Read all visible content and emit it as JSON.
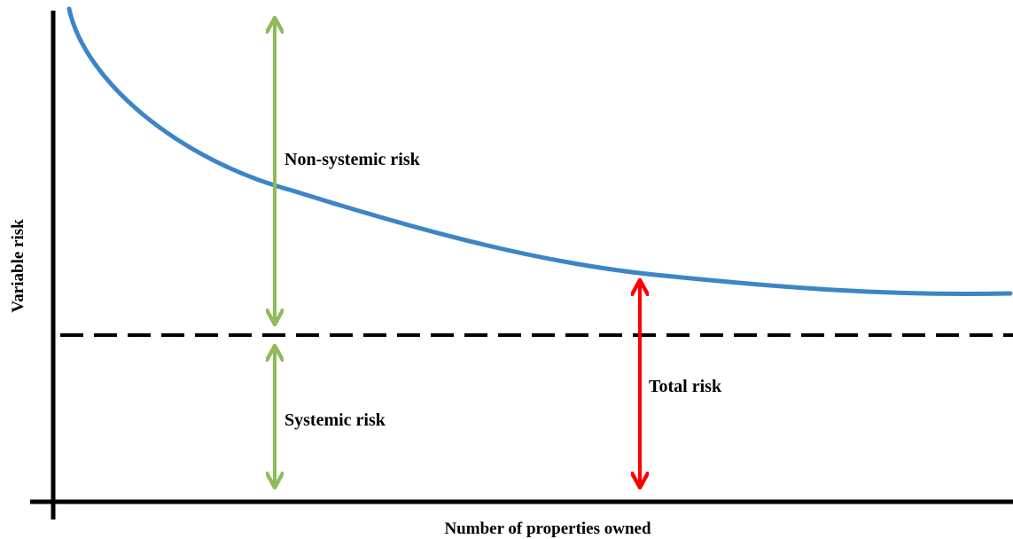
{
  "diagram": {
    "y_axis_label": "Variable risk",
    "x_axis_label": "Number of properties owned",
    "labels": {
      "non_systemic": "Non-systemic risk",
      "systemic": "Systemic risk",
      "total": "Total risk"
    },
    "colors": {
      "curve": "#3d85c6",
      "systemic_line": "#000000",
      "green_arrows": "#8fbc5a",
      "red_arrow": "#ff0000",
      "axes": "#000000",
      "text": "#000000"
    }
  }
}
